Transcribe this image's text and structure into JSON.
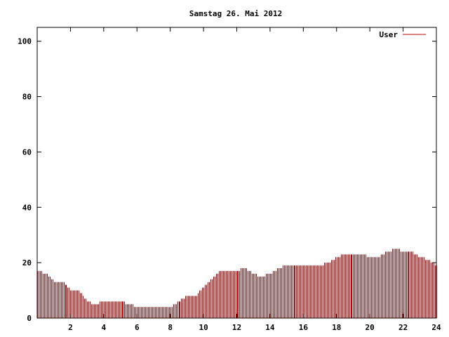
{
  "chart_data": {
    "type": "bar",
    "title": "Samstag 26. Mai 2012",
    "xlabel": "",
    "ylabel": "",
    "xlim": [
      0,
      24
    ],
    "ylim": [
      0,
      105
    ],
    "x_ticks": [
      2,
      4,
      6,
      8,
      10,
      12,
      14,
      16,
      18,
      20,
      22,
      24
    ],
    "y_ticks": [
      0,
      20,
      40,
      60,
      80,
      100
    ],
    "grid": false,
    "legend_position": "top-right",
    "series": [
      {
        "name": "User",
        "color": "#c00000",
        "x": [
          0,
          0.5,
          1,
          1.5,
          2,
          2.5,
          3,
          3.5,
          4,
          4.5,
          5,
          5.5,
          6,
          6.5,
          7,
          7.5,
          8,
          8.5,
          9,
          9.5,
          10,
          10.5,
          11,
          11.5,
          12,
          12.5,
          13,
          13.5,
          14,
          14.5,
          15,
          15.5,
          16,
          16.5,
          17,
          17.5,
          18,
          18.5,
          19,
          19.5,
          20,
          20.5,
          21,
          21.5,
          22,
          22.5,
          23,
          23.5,
          24
        ],
        "values": [
          17,
          16,
          13,
          13,
          10,
          10,
          6,
          5,
          6,
          6,
          6,
          5,
          4,
          4,
          4,
          4,
          4,
          6,
          8,
          8,
          11,
          14,
          17,
          17,
          17,
          18,
          16,
          15,
          16,
          18,
          19,
          19,
          19,
          19,
          19,
          20,
          22,
          23,
          23,
          23,
          22,
          22,
          24,
          25,
          24,
          24,
          22,
          21,
          19
        ]
      }
    ]
  }
}
